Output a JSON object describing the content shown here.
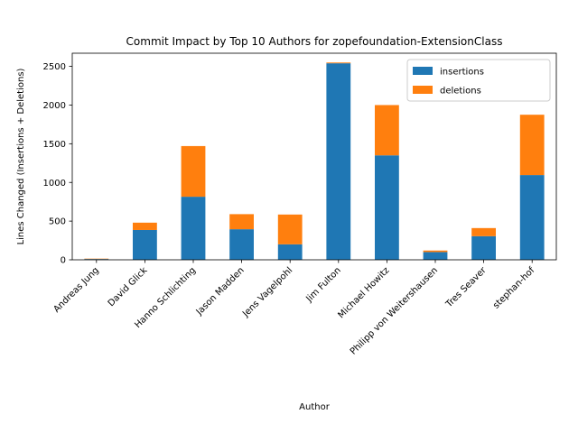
{
  "chart_data": {
    "type": "bar",
    "stacked": true,
    "title": "Commit Impact by Top 10 Authors for zopefoundation-ExtensionClass",
    "xlabel": "Author",
    "ylabel": "Lines Changed (Insertions + Deletions)",
    "ylim": [
      0,
      2670
    ],
    "yticks": [
      0,
      500,
      1000,
      1500,
      2000,
      2500
    ],
    "grid": false,
    "legend_position": "top-right",
    "categories": [
      "Andreas Jung",
      "David Glick",
      "Hanno Schlichting",
      "Jason Madden",
      "Jens Vagelpohl",
      "Jim Fulton",
      "Michael Howitz",
      "Philipp von Weitershausen",
      "Tres Seaver",
      "stephan-hof"
    ],
    "series": [
      {
        "name": "insertions",
        "color": "#1f77b4",
        "values": [
          10,
          385,
          815,
          395,
          200,
          2540,
          1350,
          100,
          305,
          1095
        ]
      },
      {
        "name": "deletions",
        "color": "#ff7f0e",
        "values": [
          5,
          95,
          655,
          195,
          385,
          10,
          650,
          20,
          105,
          780
        ]
      }
    ]
  }
}
